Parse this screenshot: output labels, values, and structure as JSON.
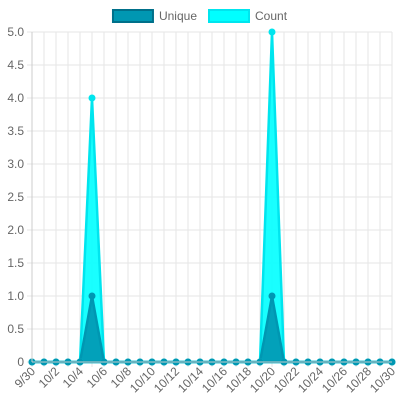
{
  "chart_data": {
    "type": "area",
    "x": [
      "9/30",
      "10/1",
      "10/2",
      "10/3",
      "10/4",
      "10/5",
      "10/6",
      "10/7",
      "10/8",
      "10/9",
      "10/10",
      "10/11",
      "10/12",
      "10/13",
      "10/14",
      "10/15",
      "10/16",
      "10/17",
      "10/18",
      "10/19",
      "10/20",
      "10/21",
      "10/22",
      "10/23",
      "10/24",
      "10/25",
      "10/26",
      "10/27",
      "10/28",
      "10/29",
      "10/30"
    ],
    "x_tick_labels": [
      "9/30",
      "10/2",
      "10/4",
      "10/6",
      "10/8",
      "10/10",
      "10/12",
      "10/14",
      "10/16",
      "10/18",
      "10/20",
      "10/22",
      "10/24",
      "10/26",
      "10/28",
      "10/30"
    ],
    "series": [
      {
        "name": "Unique",
        "values": [
          0,
          0,
          0,
          0,
          0,
          1,
          0,
          0,
          0,
          0,
          0,
          0,
          0,
          0,
          0,
          0,
          0,
          0,
          0,
          0,
          1,
          0,
          0,
          0,
          0,
          0,
          0,
          0,
          0,
          0,
          0
        ],
        "fill": "#0097b2",
        "stroke": "#0097b2"
      },
      {
        "name": "Count",
        "values": [
          0,
          0,
          0,
          0,
          0,
          4,
          0,
          0,
          0,
          0,
          0,
          0,
          0,
          0,
          0,
          0,
          0,
          0,
          0,
          0,
          5,
          0,
          0,
          0,
          0,
          0,
          0,
          0,
          0,
          0,
          0
        ],
        "fill": "#00ffff",
        "stroke": "#00e5ee"
      }
    ],
    "ylim": [
      0,
      5
    ],
    "y_ticks": [
      "0",
      "0.5",
      "1.0",
      "1.5",
      "2.0",
      "2.5",
      "3.0",
      "3.5",
      "4.0",
      "4.5",
      "5.0"
    ],
    "grid": true,
    "legend": "top-center"
  }
}
